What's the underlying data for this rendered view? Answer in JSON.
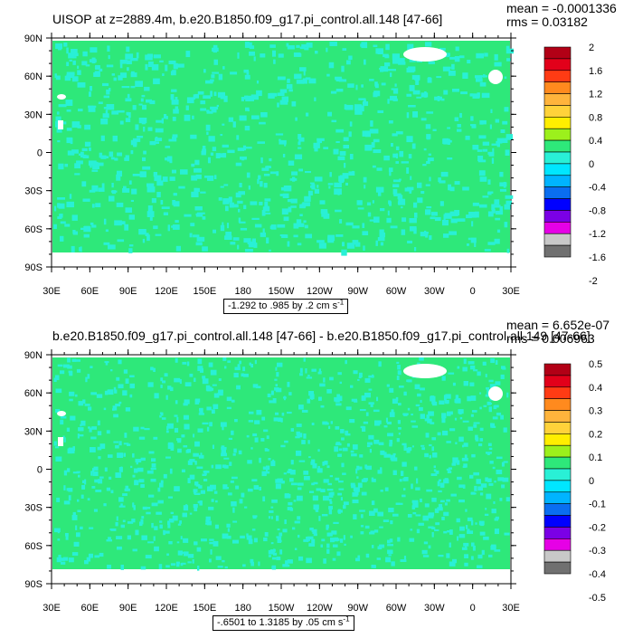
{
  "colors": {
    "land_mask": "#ffffff",
    "frame": "#000000",
    "field_main": "#2ee87a",
    "field_neg": "#29f0d6",
    "ice": "#ffffff"
  },
  "palette": [
    {
      "label": "2",
      "color": "#b20016"
    },
    {
      "label": "1.6",
      "color": "#e2001a"
    },
    {
      "label": "1.2",
      "color": "#ff3b14"
    },
    {
      "label": "0.8",
      "color": "#ff8a1e"
    },
    {
      "label": "0.4",
      "color": "#ffb43c"
    },
    {
      "label": "0",
      "color": "#ffd23a"
    },
    {
      "label": "-0.4",
      "color": "#ffee00"
    },
    {
      "label": "-0.8",
      "color": "#9cf01c"
    },
    {
      "label": "-1.2",
      "color": "#2ee87a"
    },
    {
      "label": "-1.6",
      "color": "#29f0d6"
    },
    {
      "label": "-2",
      "color": "#00e6ff"
    }
  ],
  "chart_data": [
    {
      "type": "heatmap",
      "title": "UISOP at z=2889.4m, b.e20.B1850.f09_g17.pi_control.all.148 [47-66]",
      "mean_text": "mean = -0.0001336",
      "rms_text": "rms = 0.03182",
      "range_text": "-1.292 to .985 by .2 cm s",
      "range_unit_sup": "-1",
      "x_ticks": [
        "30E",
        "60E",
        "90E",
        "120E",
        "150E",
        "180",
        "150W",
        "120W",
        "90W",
        "60W",
        "30W",
        "0",
        "30E"
      ],
      "y_ticks": [
        "90N",
        "60N",
        "30N",
        "0",
        "30S",
        "60S",
        "90S"
      ],
      "colorbar_labels": [
        "2",
        "1.6",
        "1.2",
        "0.8",
        "0.4",
        "0",
        "-0.4",
        "-0.8",
        "-1.2",
        "-1.6",
        "-2"
      ],
      "colorbar_colors": [
        "#b20016",
        "#e2001a",
        "#ff3b14",
        "#ff8a1e",
        "#ffb43c",
        "#ffd23a",
        "#ffee00",
        "#9cf01c",
        "#2ee87a",
        "#29f0d6",
        "#00e6ff",
        "#00b4ff",
        "#0a6ef0",
        "#0000ff",
        "#7b00e6",
        "#e600e6",
        "#c8c8c8",
        "#707070"
      ],
      "dominant_value": 0
    },
    {
      "type": "heatmap",
      "title": "b.e20.B1850.f09_g17.pi_control.all.148 [47-66] - b.e20.B1850.f09_g17.pi_control.all.149 [47-66]",
      "mean_text": "mean = 6.652e-07",
      "rms_text": "rms = 0.006963",
      "range_text": "-.6501 to 1.3185 by .05 cm s",
      "range_unit_sup": "-1",
      "x_ticks": [
        "30E",
        "60E",
        "90E",
        "120E",
        "150E",
        "180",
        "150W",
        "120W",
        "90W",
        "60W",
        "30W",
        "0",
        "30E"
      ],
      "y_ticks": [
        "90N",
        "60N",
        "30N",
        "0",
        "30S",
        "60S",
        "90S"
      ],
      "colorbar_labels": [
        "0.5",
        "0.4",
        "0.3",
        "0.2",
        "0.1",
        "0",
        "-0.1",
        "-0.2",
        "-0.3",
        "-0.4",
        "-0.5"
      ],
      "colorbar_colors": [
        "#b20016",
        "#e2001a",
        "#ff3b14",
        "#ff8a1e",
        "#ffb43c",
        "#ffd23a",
        "#ffee00",
        "#9cf01c",
        "#2ee87a",
        "#29f0d6",
        "#00e6ff",
        "#00b4ff",
        "#0a6ef0",
        "#0000ff",
        "#7b00e6",
        "#e600e6",
        "#c8c8c8",
        "#707070"
      ],
      "dominant_value": 0
    }
  ]
}
